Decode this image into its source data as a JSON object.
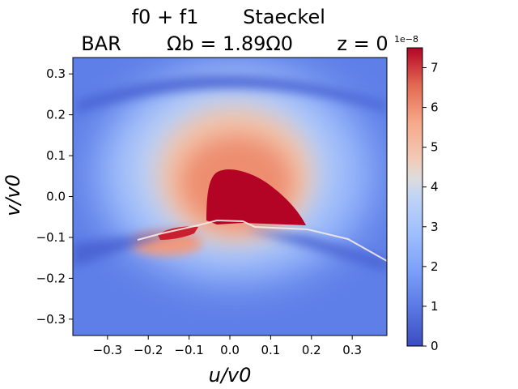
{
  "chart_data": {
    "type": "heatmap",
    "title_line1": {
      "left": "f0 + f1",
      "right": "Staeckel"
    },
    "title_line2": {
      "left": "BAR",
      "middle": "Ωb = 1.89Ω0",
      "right": "z = 0"
    },
    "xlabel": "u/v0",
    "ylabel": "v/v0",
    "xlim": [
      -0.385,
      0.385
    ],
    "ylim": [
      -0.34,
      0.34
    ],
    "xticks": [
      -0.3,
      -0.2,
      -0.1,
      0.0,
      0.1,
      0.2,
      0.3
    ],
    "xtick_labels": [
      "−0.3",
      "−0.2",
      "−0.1",
      "0.0",
      "0.1",
      "0.2",
      "0.3"
    ],
    "yticks": [
      0.3,
      0.2,
      0.1,
      0.0,
      -0.1,
      -0.2,
      -0.3
    ],
    "ytick_labels": [
      "0.3",
      "0.2",
      "0.1",
      "0.0",
      "−0.1",
      "−0.2",
      "−0.3"
    ],
    "colorbar": {
      "min": 0,
      "max": 7.5,
      "ticks": [
        0,
        1,
        2,
        3,
        4,
        5,
        6,
        7
      ],
      "tick_labels": [
        "0",
        "1",
        "2",
        "3",
        "4",
        "5",
        "6",
        "7"
      ],
      "offset_label": "1e−8",
      "colormap": "coolwarm"
    },
    "features": {
      "peak_region_center": [
        0.02,
        0.0
      ],
      "peak_value": 7.5,
      "background_value": 1.0,
      "low_arc_band_value": 0.6
    },
    "grid": false
  }
}
